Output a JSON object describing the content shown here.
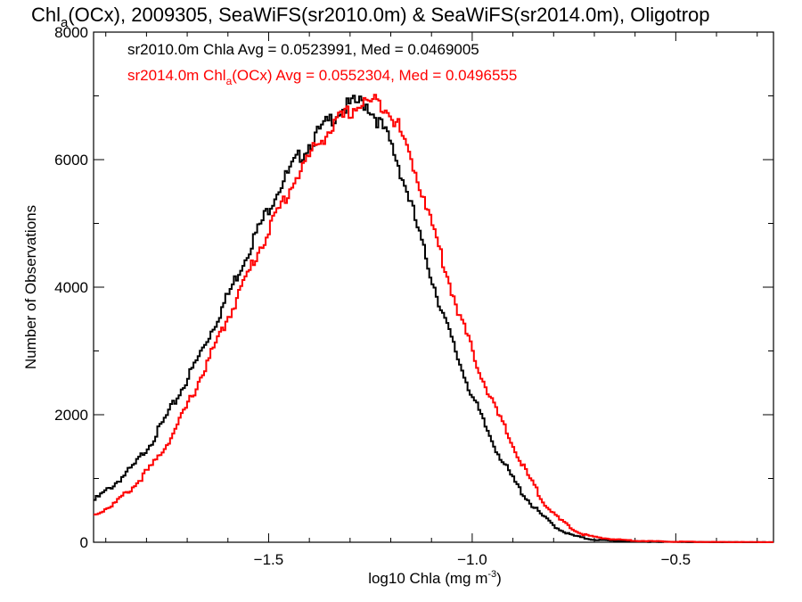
{
  "chart_data": {
    "type": "line",
    "step": true,
    "title_parts": [
      "Chl",
      "a",
      "(OCx), 2009305, SeaWiFS(sr2010.0m) & SeaWiFS(sr2014.0m), Oligotrop"
    ],
    "xlabel_parts": [
      "log10 Chla (mg m",
      "-3",
      ")"
    ],
    "ylabel": "Number of Observations",
    "xlim": [
      -1.93,
      -0.26
    ],
    "ylim": [
      0,
      8000
    ],
    "xticks": [
      -1.5,
      -1.0,
      -0.5
    ],
    "xtick_labels": [
      "−1.5",
      "−1.0",
      "−0.5"
    ],
    "yticks": [
      0,
      2000,
      4000,
      6000,
      8000
    ],
    "ytick_labels": [
      "0",
      "2000",
      "4000",
      "6000",
      "8000"
    ],
    "annotations": [
      {
        "parts": [
          "sr2010.0m Chla Avg = 0.0523991, Med = 0.0469005"
        ],
        "color": "#000000"
      },
      {
        "parts": [
          "sr2014.0m Chl",
          "a",
          "(OCx) Avg = 0.0552304, Med = 0.0496555"
        ],
        "color": "#ff0000"
      }
    ],
    "series": [
      {
        "name": "sr2010.0m",
        "color": "#000000",
        "x": [
          -1.93,
          -1.88,
          -1.83,
          -1.78,
          -1.73,
          -1.68,
          -1.63,
          -1.58,
          -1.53,
          -1.48,
          -1.43,
          -1.38,
          -1.33,
          -1.3,
          -1.28,
          -1.26,
          -1.24,
          -1.22,
          -1.2,
          -1.18,
          -1.15,
          -1.12,
          -1.09,
          -1.06,
          -1.03,
          -1.0,
          -0.97,
          -0.94,
          -0.91,
          -0.88,
          -0.85,
          -0.82,
          -0.79,
          -0.76,
          -0.73,
          -0.7,
          -0.65,
          -0.6,
          -0.55,
          -0.5,
          -0.45,
          -0.4,
          -0.35,
          -0.3,
          -0.26
        ],
        "y": [
          650,
          900,
          1200,
          1650,
          2200,
          2800,
          3450,
          4150,
          4850,
          5500,
          6000,
          6400,
          6750,
          6850,
          6900,
          6880,
          6700,
          6500,
          6250,
          5900,
          5300,
          4600,
          3950,
          3350,
          2800,
          2300,
          1850,
          1450,
          1100,
          800,
          560,
          370,
          220,
          120,
          70,
          40,
          20,
          12,
          8,
          5,
          3,
          2,
          1,
          1,
          0
        ]
      },
      {
        "name": "sr2014.0m",
        "color": "#ff0000",
        "x": [
          -1.93,
          -1.88,
          -1.83,
          -1.78,
          -1.73,
          -1.68,
          -1.63,
          -1.58,
          -1.53,
          -1.48,
          -1.43,
          -1.38,
          -1.33,
          -1.3,
          -1.28,
          -1.26,
          -1.24,
          -1.22,
          -1.2,
          -1.18,
          -1.15,
          -1.12,
          -1.09,
          -1.06,
          -1.03,
          -1.0,
          -0.97,
          -0.94,
          -0.91,
          -0.88,
          -0.85,
          -0.82,
          -0.79,
          -0.76,
          -0.73,
          -0.7,
          -0.65,
          -0.6,
          -0.55,
          -0.5,
          -0.45,
          -0.4,
          -0.35,
          -0.3,
          -0.26
        ],
        "y": [
          420,
          600,
          880,
          1250,
          1750,
          2400,
          3100,
          3800,
          4500,
          5150,
          5750,
          6250,
          6600,
          6750,
          6850,
          6900,
          6900,
          6880,
          6750,
          6500,
          6000,
          5450,
          4800,
          4150,
          3550,
          3000,
          2500,
          2050,
          1650,
          1250,
          900,
          600,
          380,
          230,
          130,
          80,
          45,
          25,
          15,
          10,
          6,
          4,
          3,
          2,
          1
        ]
      }
    ]
  }
}
